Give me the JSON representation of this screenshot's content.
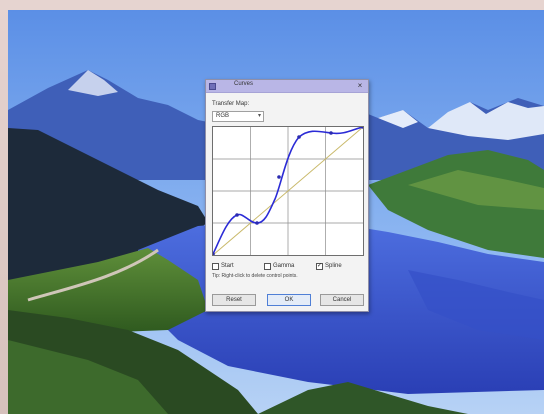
{
  "dialog": {
    "title": "Curves",
    "close_label": "×",
    "transfer_label": "Transfer Map:",
    "channel_value": "RGB",
    "checkboxes": [
      {
        "label": "Start",
        "checked": false
      },
      {
        "label": "Gamma",
        "checked": false
      },
      {
        "label": "Spline",
        "checked": true
      }
    ],
    "hint": "Tip: Right-click to delete control points.",
    "buttons": {
      "reset": "Reset",
      "ok": "OK",
      "cancel": "Cancel"
    }
  },
  "colors": {
    "curve": "#2b2bd6",
    "point": "#2b2bb0",
    "diagonal": "#c9b96a",
    "titlebar": "#b9b6e6"
  },
  "icons": [
    "app-icon",
    "close-icon",
    "chevron-down-icon"
  ]
}
